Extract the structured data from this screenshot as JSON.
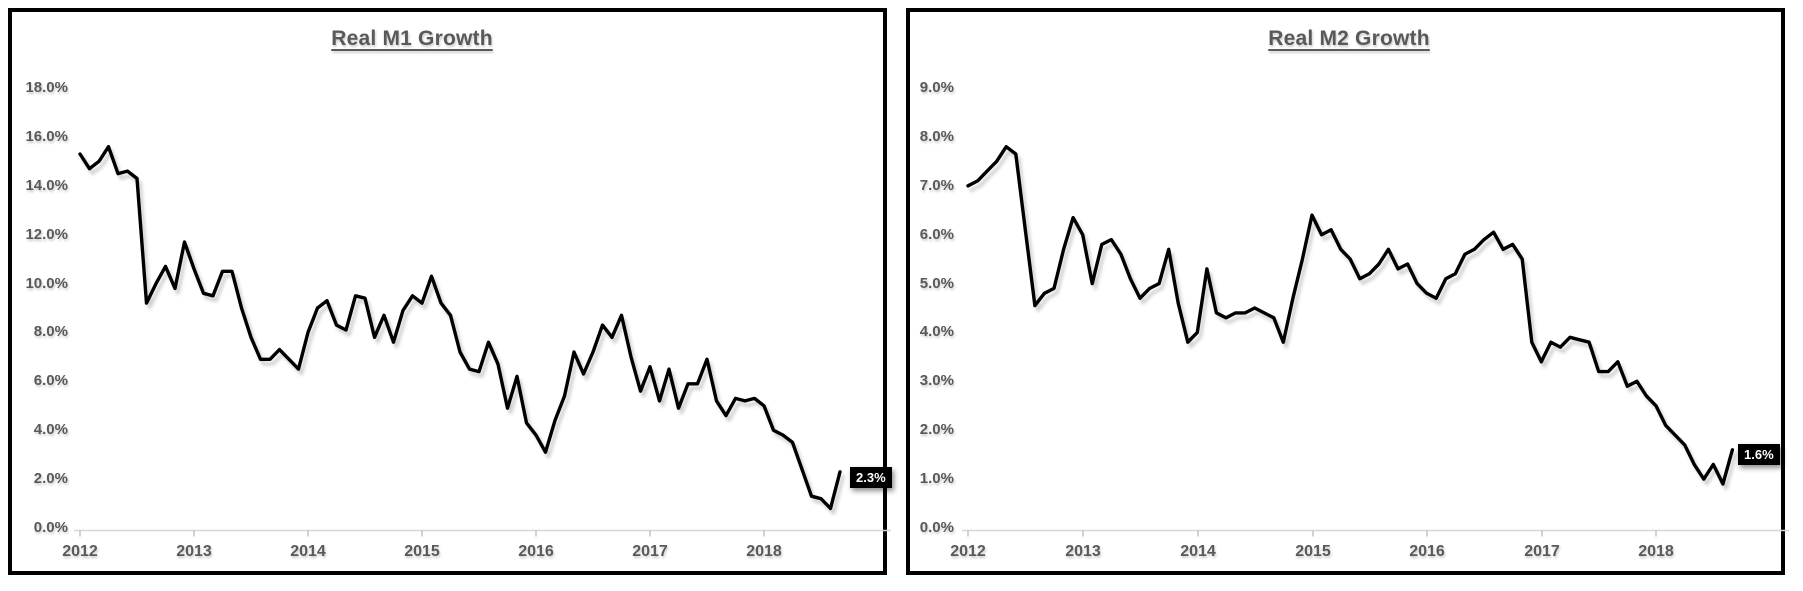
{
  "page": {
    "background": "#ffffff"
  },
  "colors": {
    "title_text": "#595959",
    "tick_text": "#595959",
    "line": "#000000",
    "axis_line": "#d6d6d6",
    "end_label_bg": "#000000",
    "end_label_text": "#ffffff",
    "panel_border": "#000000"
  },
  "charts": [
    {
      "id": "m1",
      "title": "Real M1 Growth",
      "end_label": "2.3%",
      "y_tick_labels": [
        "18.0%",
        "16.0%",
        "14.0%",
        "12.0%",
        "10.0%",
        "8.0%",
        "6.0%",
        "4.0%",
        "2.0%",
        "0.0%"
      ],
      "x_tick_labels": [
        "2012",
        "2013",
        "2014",
        "2015",
        "2016",
        "2017",
        "2018"
      ]
    },
    {
      "id": "m2",
      "title": "Real M2 Growth",
      "end_label": "1.6%",
      "y_tick_labels": [
        "9.0%",
        "8.0%",
        "7.0%",
        "6.0%",
        "5.0%",
        "4.0%",
        "3.0%",
        "2.0%",
        "1.0%",
        "0.0%"
      ],
      "x_tick_labels": [
        "2012",
        "2013",
        "2014",
        "2015",
        "2016",
        "2017",
        "2018"
      ]
    }
  ],
  "chart_data": [
    {
      "type": "line",
      "title": "Real M1 Growth",
      "xlabel": "",
      "ylabel": "",
      "x_unit": "month",
      "x_start": "2012-01",
      "x_end": "2018-09",
      "x_axis_tick_labels": [
        "2012",
        "2013",
        "2014",
        "2015",
        "2016",
        "2017",
        "2018"
      ],
      "ylim": [
        0,
        18
      ],
      "y_tick_step": 2,
      "y_format": "percent",
      "grid": false,
      "legend": "none",
      "line_color": "#000000",
      "last_point_label": "2.3%",
      "values": [
        15.3,
        14.7,
        15.0,
        15.6,
        14.5,
        14.6,
        14.3,
        9.2,
        10.0,
        10.7,
        9.8,
        11.7,
        10.6,
        9.6,
        9.5,
        10.5,
        10.5,
        9.0,
        7.8,
        6.9,
        6.9,
        7.3,
        6.9,
        6.5,
        8.0,
        9.0,
        9.3,
        8.3,
        8.1,
        9.5,
        9.4,
        7.8,
        8.7,
        7.6,
        8.9,
        9.5,
        9.2,
        10.3,
        9.2,
        8.7,
        7.2,
        6.5,
        6.4,
        7.6,
        6.7,
        4.9,
        6.2,
        4.3,
        3.8,
        3.1,
        4.4,
        5.4,
        7.2,
        6.3,
        7.2,
        8.3,
        7.8,
        8.7,
        7.0,
        5.6,
        6.6,
        5.2,
        6.5,
        4.9,
        5.9,
        5.9,
        6.9,
        5.2,
        4.6,
        5.3,
        5.2,
        5.3,
        5.0,
        4.0,
        3.8,
        3.5,
        2.4,
        1.3,
        1.2,
        0.8,
        2.3
      ]
    },
    {
      "type": "line",
      "title": "Real M2 Growth",
      "xlabel": "",
      "ylabel": "",
      "x_unit": "month",
      "x_start": "2012-01",
      "x_end": "2018-09",
      "x_axis_tick_labels": [
        "2012",
        "2013",
        "2014",
        "2015",
        "2016",
        "2017",
        "2018"
      ],
      "ylim": [
        0,
        9
      ],
      "y_tick_step": 1,
      "y_format": "percent",
      "grid": false,
      "legend": "none",
      "line_color": "#000000",
      "last_point_label": "1.6%",
      "values": [
        7.0,
        7.1,
        7.3,
        7.5,
        7.8,
        7.65,
        6.1,
        4.55,
        4.8,
        4.9,
        5.7,
        6.35,
        6.0,
        5.0,
        5.8,
        5.9,
        5.6,
        5.1,
        4.7,
        4.9,
        5.0,
        5.7,
        4.6,
        3.8,
        4.0,
        5.3,
        4.4,
        4.3,
        4.4,
        4.4,
        4.5,
        4.4,
        4.3,
        3.8,
        4.7,
        5.5,
        6.4,
        6.0,
        6.1,
        5.7,
        5.5,
        5.1,
        5.2,
        5.4,
        5.7,
        5.3,
        5.4,
        5.0,
        4.8,
        4.7,
        5.1,
        5.2,
        5.6,
        5.7,
        5.9,
        6.05,
        5.7,
        5.8,
        5.5,
        3.8,
        3.4,
        3.8,
        3.7,
        3.9,
        3.85,
        3.8,
        3.2,
        3.2,
        3.4,
        2.9,
        3.0,
        2.7,
        2.5,
        2.1,
        1.9,
        1.7,
        1.3,
        1.0,
        1.3,
        0.9,
        1.6
      ]
    }
  ]
}
